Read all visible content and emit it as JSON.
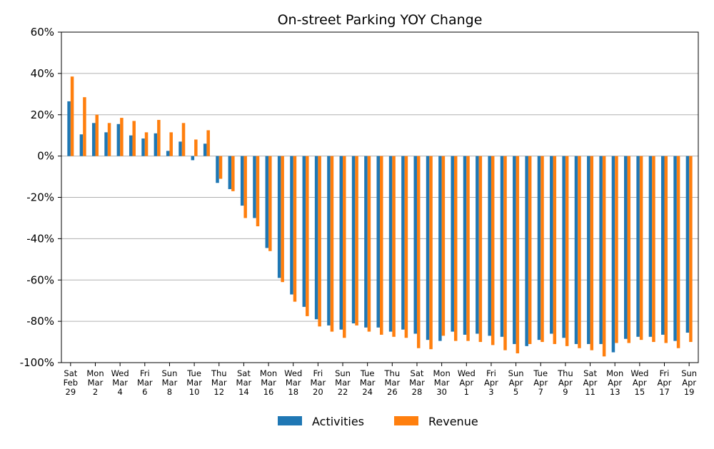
{
  "chart_data": {
    "type": "bar",
    "title": "On-street Parking YOY Change",
    "xlabel": "",
    "ylabel": "",
    "ylim": [
      -100,
      60
    ],
    "yticks": [
      60,
      40,
      20,
      0,
      -20,
      -40,
      -60,
      -80,
      -100
    ],
    "ytick_labels": [
      "60%",
      "40%",
      "20%",
      "0%",
      "-20%",
      "-40%",
      "-60%",
      "-80%",
      "-100%"
    ],
    "grid": "horizontal",
    "legend": "bottom",
    "colors": {
      "Activities": "#1f77b4",
      "Revenue": "#ff7f0e"
    },
    "categories": [
      "2020-02-29",
      "2020-03-01",
      "2020-03-02",
      "2020-03-03",
      "2020-03-04",
      "2020-03-05",
      "2020-03-06",
      "2020-03-07",
      "2020-03-08",
      "2020-03-09",
      "2020-03-10",
      "2020-03-11",
      "2020-03-12",
      "2020-03-13",
      "2020-03-14",
      "2020-03-15",
      "2020-03-16",
      "2020-03-17",
      "2020-03-18",
      "2020-03-19",
      "2020-03-20",
      "2020-03-21",
      "2020-03-22",
      "2020-03-23",
      "2020-03-24",
      "2020-03-25",
      "2020-03-26",
      "2020-03-27",
      "2020-03-28",
      "2020-03-29",
      "2020-03-30",
      "2020-03-31",
      "2020-04-01",
      "2020-04-02",
      "2020-04-03",
      "2020-04-04",
      "2020-04-05",
      "2020-04-06",
      "2020-04-07",
      "2020-04-08",
      "2020-04-09",
      "2020-04-10",
      "2020-04-11",
      "2020-04-12",
      "2020-04-13",
      "2020-04-14",
      "2020-04-15",
      "2020-04-16",
      "2020-04-17",
      "2020-04-18",
      "2020-04-19"
    ],
    "tick_labels": [
      [
        "Sat",
        "Feb",
        "29"
      ],
      [
        "Mon",
        "Mar",
        "2"
      ],
      [
        "Wed",
        "Mar",
        "4"
      ],
      [
        "Fri",
        "Mar",
        "6"
      ],
      [
        "Sun",
        "Mar",
        "8"
      ],
      [
        "Tue",
        "Mar",
        "10"
      ],
      [
        "Thu",
        "Mar",
        "12"
      ],
      [
        "Sat",
        "Mar",
        "14"
      ],
      [
        "Mon",
        "Mar",
        "16"
      ],
      [
        "Wed",
        "Mar",
        "18"
      ],
      [
        "Fri",
        "Mar",
        "20"
      ],
      [
        "Sun",
        "Mar",
        "22"
      ],
      [
        "Tue",
        "Mar",
        "24"
      ],
      [
        "Thu",
        "Mar",
        "26"
      ],
      [
        "Sat",
        "Mar",
        "28"
      ],
      [
        "Mon",
        "Mar",
        "30"
      ],
      [
        "Wed",
        "Apr",
        "1"
      ],
      [
        "Fri",
        "Apr",
        "3"
      ],
      [
        "Sun",
        "Apr",
        "5"
      ],
      [
        "Tue",
        "Apr",
        "7"
      ],
      [
        "Thu",
        "Apr",
        "9"
      ],
      [
        "Sat",
        "Apr",
        "11"
      ],
      [
        "Mon",
        "Apr",
        "13"
      ],
      [
        "Wed",
        "Apr",
        "15"
      ],
      [
        "Fri",
        "Apr",
        "17"
      ],
      [
        "Sun",
        "Apr",
        "19"
      ]
    ],
    "series": [
      {
        "name": "Activities",
        "values": [
          26.5,
          10.5,
          16,
          11.5,
          15.5,
          10,
          8.5,
          11,
          2.5,
          7,
          -2,
          6,
          -13,
          -16,
          -24,
          -30,
          -44.5,
          -59,
          -67,
          -73,
          -79,
          -82,
          -84,
          -81,
          -83,
          -83,
          -85,
          -84,
          -86,
          -89,
          -89.5,
          -85,
          -86.5,
          -86,
          -87,
          -87.5,
          -91,
          -92,
          -89,
          -86,
          -88,
          -91,
          -91,
          -91,
          -95,
          -88.5,
          -87.5,
          -87.5,
          -86.5,
          -89.5,
          -85.5
        ]
      },
      {
        "name": "Revenue",
        "values": [
          38.5,
          28.5,
          20,
          16,
          18.5,
          17,
          11.5,
          17.5,
          11.5,
          16,
          8,
          12.5,
          -11,
          -17,
          -30,
          -34,
          -46,
          -61,
          -70.5,
          -77.5,
          -82.5,
          -85,
          -88,
          -82,
          -85,
          -86.5,
          -87.5,
          -88,
          -93,
          -93.5,
          -87,
          -89.5,
          -89.5,
          -90,
          -91.5,
          -94,
          -95.5,
          -91,
          -90,
          -91,
          -92,
          -93,
          -94,
          -97,
          -90.5,
          -90.5,
          -89,
          -90,
          -90.5,
          -93,
          -90
        ]
      }
    ]
  }
}
